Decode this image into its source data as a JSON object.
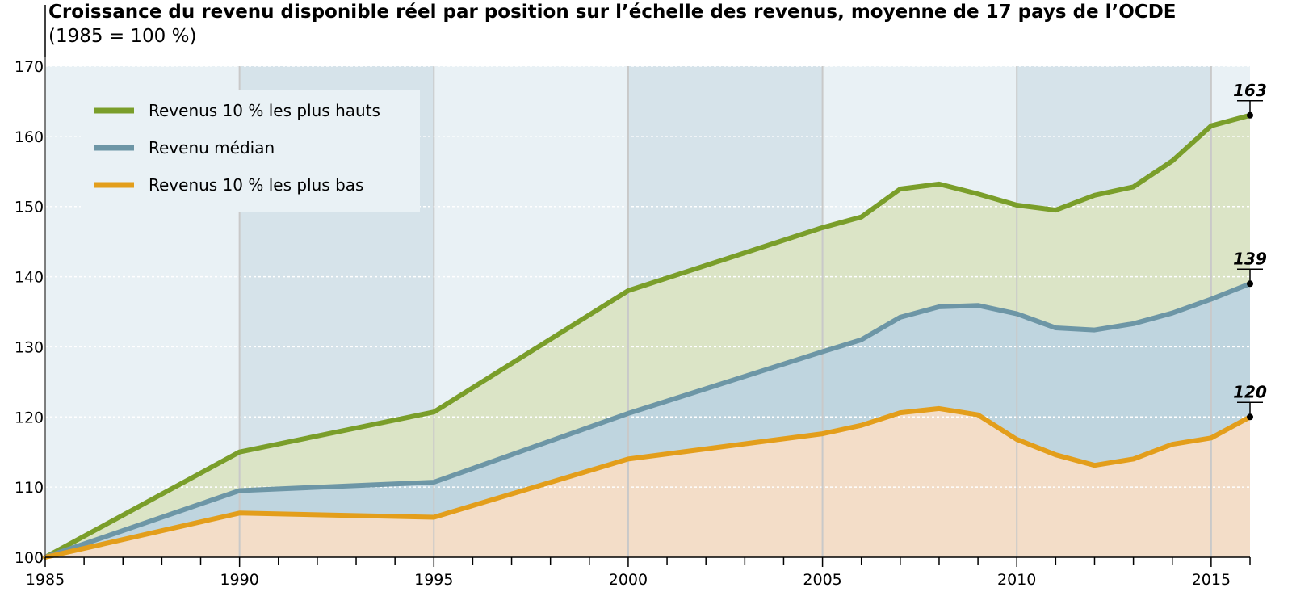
{
  "chart_data": {
    "type": "area",
    "title": "Croissance du revenu disponible réel par position sur l’échelle des revenus, moyenne de 17 pays de l’OCDE",
    "subtitle": "(1985 = 100 %)",
    "xlabel": "",
    "ylabel": "",
    "xlim": [
      1985,
      2016
    ],
    "ylim": [
      100,
      170
    ],
    "x_ticks": [
      1985,
      1990,
      1995,
      2000,
      2005,
      2010,
      2015
    ],
    "y_ticks": [
      100,
      110,
      120,
      130,
      140,
      150,
      160,
      170
    ],
    "grid": true,
    "legend_position": "top-left",
    "x": [
      1985,
      1990,
      1995,
      2000,
      2005,
      2006,
      2007,
      2008,
      2009,
      2010,
      2011,
      2012,
      2013,
      2014,
      2015,
      2016
    ],
    "series": [
      {
        "key": "top",
        "name": "Revenus 10 % les plus hauts",
        "color": "#7a9e2a",
        "fill": "#dbe4c6",
        "values": [
          100,
          115,
          120.7,
          138,
          147,
          148.5,
          152.5,
          153.2,
          151.8,
          150.2,
          149.5,
          151.6,
          152.8,
          156.5,
          161.5,
          163
        ],
        "end_label": "163"
      },
      {
        "key": "median",
        "name": "Revenu médian",
        "color": "#6d96a6",
        "fill": "#bfd5df",
        "values": [
          100,
          109.5,
          110.7,
          120.5,
          129.3,
          131,
          134.2,
          135.7,
          135.9,
          134.7,
          132.7,
          132.4,
          133.3,
          134.8,
          136.8,
          139
        ],
        "end_label": "139"
      },
      {
        "key": "bottom",
        "name": "Revenus 10 % les plus bas",
        "color": "#e39e1b",
        "fill": "#f3ddc8",
        "values": [
          100,
          106.3,
          105.7,
          114,
          117.6,
          118.8,
          120.6,
          121.2,
          120.3,
          116.8,
          114.6,
          113.1,
          114,
          116.1,
          117,
          120
        ],
        "end_label": "120"
      }
    ],
    "background_bands": {
      "light": "#e9f1f5",
      "dark": "#d6e3ea",
      "shaded_periods": [
        [
          1990,
          1995
        ],
        [
          2000,
          2005
        ],
        [
          2010,
          2015
        ]
      ]
    }
  }
}
